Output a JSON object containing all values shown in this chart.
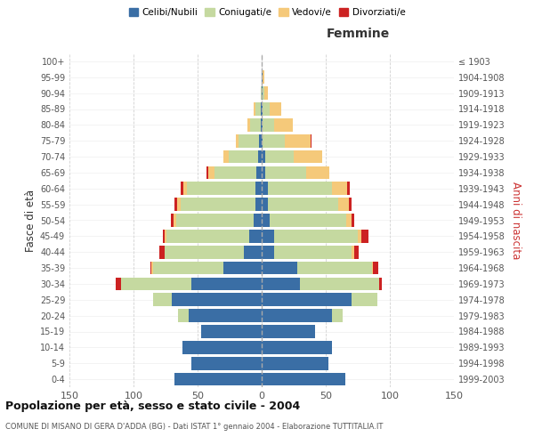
{
  "age_groups": [
    "0-4",
    "5-9",
    "10-14",
    "15-19",
    "20-24",
    "25-29",
    "30-34",
    "35-39",
    "40-44",
    "45-49",
    "50-54",
    "55-59",
    "60-64",
    "65-69",
    "70-74",
    "75-79",
    "80-84",
    "85-89",
    "90-94",
    "95-99",
    "100+"
  ],
  "birth_years": [
    "1999-2003",
    "1994-1998",
    "1989-1993",
    "1984-1988",
    "1979-1983",
    "1974-1978",
    "1969-1973",
    "1964-1968",
    "1959-1963",
    "1954-1958",
    "1949-1953",
    "1944-1948",
    "1939-1943",
    "1934-1938",
    "1929-1933",
    "1924-1928",
    "1919-1923",
    "1914-1918",
    "1909-1913",
    "1904-1908",
    "≤ 1903"
  ],
  "male": {
    "celibi": [
      68,
      55,
      62,
      47,
      57,
      70,
      55,
      30,
      14,
      10,
      6,
      5,
      5,
      4,
      3,
      2,
      1,
      1,
      0,
      0,
      0
    ],
    "coniugati": [
      0,
      0,
      0,
      0,
      8,
      15,
      55,
      55,
      62,
      64,
      61,
      58,
      53,
      33,
      23,
      16,
      8,
      4,
      1,
      0,
      0
    ],
    "vedovi": [
      0,
      0,
      0,
      0,
      0,
      0,
      0,
      1,
      0,
      2,
      2,
      3,
      3,
      5,
      4,
      2,
      2,
      1,
      0,
      0,
      0
    ],
    "divorziati": [
      0,
      0,
      0,
      0,
      0,
      0,
      4,
      1,
      4,
      1,
      2,
      2,
      2,
      1,
      0,
      0,
      0,
      0,
      0,
      0,
      0
    ]
  },
  "female": {
    "nubili": [
      65,
      52,
      55,
      42,
      55,
      70,
      30,
      28,
      10,
      10,
      6,
      5,
      5,
      3,
      3,
      1,
      1,
      1,
      1,
      1,
      0
    ],
    "coniugate": [
      0,
      0,
      0,
      0,
      8,
      20,
      62,
      58,
      60,
      65,
      60,
      55,
      50,
      32,
      22,
      17,
      9,
      5,
      1,
      0,
      0
    ],
    "vedove": [
      0,
      0,
      0,
      0,
      0,
      0,
      0,
      1,
      2,
      3,
      4,
      8,
      12,
      18,
      22,
      20,
      14,
      9,
      3,
      1,
      0
    ],
    "divorziate": [
      0,
      0,
      0,
      0,
      0,
      0,
      2,
      4,
      4,
      5,
      2,
      2,
      2,
      0,
      0,
      1,
      0,
      0,
      0,
      0,
      0
    ]
  },
  "colors": {
    "celibi": "#3a6ea5",
    "coniugati": "#c5d9a0",
    "vedovi": "#f5c97a",
    "divorziati": "#cc2222"
  },
  "xlim": 150,
  "title": "Popolazione per età, sesso e stato civile - 2004",
  "subtitle": "COMUNE DI MISANO DI GERA D'ADDA (BG) - Dati ISTAT 1° gennaio 2004 - Elaborazione TUTTITALIA.IT",
  "xlabel_right": "Femmine",
  "ylabel_left": "Fasce di età",
  "ylabel_right": "Anni di nascita",
  "legend_labels": [
    "Celibi/Nubili",
    "Coniugati/e",
    "Vedovi/e",
    "Divorziati/e"
  ]
}
